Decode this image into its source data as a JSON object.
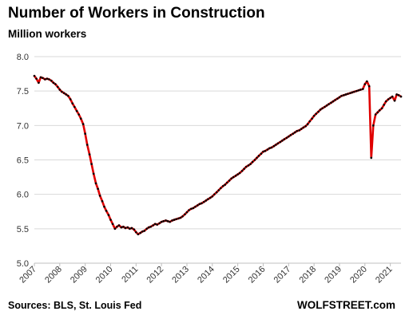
{
  "chart_data": {
    "type": "line",
    "title": "Number of Workers  in Construction",
    "ylabel": "Million workers",
    "xlabel": "",
    "ylim": [
      5.0,
      8.0
    ],
    "xlim": [
      2007.0,
      2021.42
    ],
    "y_ticks": [
      "5.0",
      "5.5",
      "6.0",
      "6.5",
      "7.0",
      "7.5",
      "8.0"
    ],
    "x_ticks": [
      "2007",
      "2008",
      "2009",
      "2010",
      "2011",
      "2012",
      "2013",
      "2014",
      "2015",
      "2016",
      "2017",
      "2018",
      "2019",
      "2020",
      "2021"
    ],
    "grid": "horizontal",
    "legend": "none",
    "line_color": "#e00000",
    "marker_color": "#000000",
    "series": [
      {
        "points": [
          [
            2007.0,
            7.72
          ],
          [
            2007.08,
            7.68
          ],
          [
            2007.17,
            7.62
          ],
          [
            2007.25,
            7.7
          ],
          [
            2007.33,
            7.69
          ],
          [
            2007.42,
            7.67
          ],
          [
            2007.5,
            7.68
          ],
          [
            2007.58,
            7.67
          ],
          [
            2007.67,
            7.65
          ],
          [
            2007.75,
            7.62
          ],
          [
            2007.83,
            7.6
          ],
          [
            2007.92,
            7.56
          ],
          [
            2008.0,
            7.52
          ],
          [
            2008.08,
            7.49
          ],
          [
            2008.17,
            7.47
          ],
          [
            2008.25,
            7.45
          ],
          [
            2008.33,
            7.43
          ],
          [
            2008.42,
            7.38
          ],
          [
            2008.5,
            7.32
          ],
          [
            2008.58,
            7.27
          ],
          [
            2008.67,
            7.21
          ],
          [
            2008.75,
            7.16
          ],
          [
            2008.83,
            7.1
          ],
          [
            2008.92,
            7.02
          ],
          [
            2009.0,
            6.88
          ],
          [
            2009.08,
            6.72
          ],
          [
            2009.17,
            6.58
          ],
          [
            2009.25,
            6.44
          ],
          [
            2009.33,
            6.3
          ],
          [
            2009.42,
            6.16
          ],
          [
            2009.5,
            6.08
          ],
          [
            2009.58,
            5.98
          ],
          [
            2009.67,
            5.9
          ],
          [
            2009.75,
            5.82
          ],
          [
            2009.83,
            5.76
          ],
          [
            2009.92,
            5.7
          ],
          [
            2010.0,
            5.63
          ],
          [
            2010.08,
            5.57
          ],
          [
            2010.17,
            5.5
          ],
          [
            2010.25,
            5.53
          ],
          [
            2010.33,
            5.55
          ],
          [
            2010.42,
            5.52
          ],
          [
            2010.5,
            5.53
          ],
          [
            2010.58,
            5.51
          ],
          [
            2010.67,
            5.52
          ],
          [
            2010.75,
            5.5
          ],
          [
            2010.83,
            5.51
          ],
          [
            2010.92,
            5.49
          ],
          [
            2011.0,
            5.45
          ],
          [
            2011.08,
            5.42
          ],
          [
            2011.17,
            5.44
          ],
          [
            2011.25,
            5.46
          ],
          [
            2011.33,
            5.47
          ],
          [
            2011.42,
            5.5
          ],
          [
            2011.5,
            5.52
          ],
          [
            2011.58,
            5.53
          ],
          [
            2011.67,
            5.55
          ],
          [
            2011.75,
            5.57
          ],
          [
            2011.83,
            5.56
          ],
          [
            2011.92,
            5.58
          ],
          [
            2012.0,
            5.6
          ],
          [
            2012.08,
            5.61
          ],
          [
            2012.17,
            5.62
          ],
          [
            2012.25,
            5.61
          ],
          [
            2012.33,
            5.6
          ],
          [
            2012.42,
            5.62
          ],
          [
            2012.5,
            5.63
          ],
          [
            2012.58,
            5.64
          ],
          [
            2012.67,
            5.65
          ],
          [
            2012.75,
            5.66
          ],
          [
            2012.83,
            5.68
          ],
          [
            2012.92,
            5.71
          ],
          [
            2013.0,
            5.74
          ],
          [
            2013.08,
            5.77
          ],
          [
            2013.17,
            5.79
          ],
          [
            2013.25,
            5.8
          ],
          [
            2013.33,
            5.82
          ],
          [
            2013.42,
            5.84
          ],
          [
            2013.5,
            5.86
          ],
          [
            2013.58,
            5.87
          ],
          [
            2013.67,
            5.89
          ],
          [
            2013.75,
            5.91
          ],
          [
            2013.83,
            5.93
          ],
          [
            2013.92,
            5.95
          ],
          [
            2014.0,
            5.97
          ],
          [
            2014.08,
            6.0
          ],
          [
            2014.17,
            6.03
          ],
          [
            2014.25,
            6.06
          ],
          [
            2014.33,
            6.09
          ],
          [
            2014.42,
            6.12
          ],
          [
            2014.5,
            6.14
          ],
          [
            2014.58,
            6.17
          ],
          [
            2014.67,
            6.2
          ],
          [
            2014.75,
            6.23
          ],
          [
            2014.83,
            6.25
          ],
          [
            2014.92,
            6.27
          ],
          [
            2015.0,
            6.29
          ],
          [
            2015.08,
            6.31
          ],
          [
            2015.17,
            6.34
          ],
          [
            2015.25,
            6.37
          ],
          [
            2015.33,
            6.4
          ],
          [
            2015.42,
            6.42
          ],
          [
            2015.5,
            6.44
          ],
          [
            2015.58,
            6.47
          ],
          [
            2015.67,
            6.5
          ],
          [
            2015.75,
            6.53
          ],
          [
            2015.83,
            6.56
          ],
          [
            2015.92,
            6.59
          ],
          [
            2016.0,
            6.62
          ],
          [
            2016.08,
            6.63
          ],
          [
            2016.17,
            6.65
          ],
          [
            2016.25,
            6.67
          ],
          [
            2016.33,
            6.68
          ],
          [
            2016.42,
            6.7
          ],
          [
            2016.5,
            6.72
          ],
          [
            2016.58,
            6.74
          ],
          [
            2016.67,
            6.76
          ],
          [
            2016.75,
            6.78
          ],
          [
            2016.83,
            6.8
          ],
          [
            2016.92,
            6.82
          ],
          [
            2017.0,
            6.84
          ],
          [
            2017.08,
            6.86
          ],
          [
            2017.17,
            6.88
          ],
          [
            2017.25,
            6.9
          ],
          [
            2017.33,
            6.92
          ],
          [
            2017.42,
            6.93
          ],
          [
            2017.5,
            6.95
          ],
          [
            2017.58,
            6.97
          ],
          [
            2017.67,
            6.99
          ],
          [
            2017.75,
            7.02
          ],
          [
            2017.83,
            7.06
          ],
          [
            2017.92,
            7.1
          ],
          [
            2018.0,
            7.14
          ],
          [
            2018.08,
            7.17
          ],
          [
            2018.17,
            7.2
          ],
          [
            2018.25,
            7.23
          ],
          [
            2018.33,
            7.25
          ],
          [
            2018.42,
            7.27
          ],
          [
            2018.5,
            7.29
          ],
          [
            2018.58,
            7.31
          ],
          [
            2018.67,
            7.33
          ],
          [
            2018.75,
            7.35
          ],
          [
            2018.83,
            7.37
          ],
          [
            2018.92,
            7.39
          ],
          [
            2019.0,
            7.41
          ],
          [
            2019.08,
            7.43
          ],
          [
            2019.17,
            7.44
          ],
          [
            2019.25,
            7.45
          ],
          [
            2019.33,
            7.46
          ],
          [
            2019.42,
            7.47
          ],
          [
            2019.5,
            7.48
          ],
          [
            2019.58,
            7.49
          ],
          [
            2019.67,
            7.5
          ],
          [
            2019.75,
            7.51
          ],
          [
            2019.83,
            7.52
          ],
          [
            2019.92,
            7.53
          ],
          [
            2020.0,
            7.6
          ],
          [
            2020.08,
            7.64
          ],
          [
            2020.17,
            7.57
          ],
          [
            2020.25,
            6.53
          ],
          [
            2020.33,
            7.0
          ],
          [
            2020.42,
            7.16
          ],
          [
            2020.5,
            7.19
          ],
          [
            2020.58,
            7.22
          ],
          [
            2020.67,
            7.25
          ],
          [
            2020.75,
            7.3
          ],
          [
            2020.83,
            7.35
          ],
          [
            2020.92,
            7.38
          ],
          [
            2021.0,
            7.4
          ],
          [
            2021.08,
            7.42
          ],
          [
            2021.17,
            7.36
          ],
          [
            2021.25,
            7.45
          ],
          [
            2021.33,
            7.44
          ],
          [
            2021.42,
            7.42
          ]
        ]
      }
    ],
    "source": "Sources: BLS, St. Louis Fed",
    "brand": "WOLFSTREET.com"
  }
}
